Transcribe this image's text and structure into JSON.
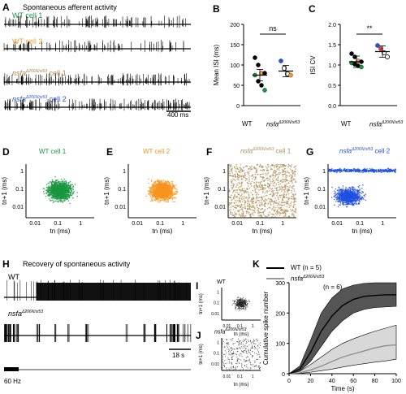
{
  "panels": {
    "A": "A",
    "B": "B",
    "C": "C",
    "D": "D",
    "E": "E",
    "F": "F",
    "G": "G",
    "H": "H",
    "I": "I",
    "J": "J",
    "K": "K"
  },
  "A": {
    "title": "Spontaneous afferent activity",
    "cells": [
      {
        "label_pre": "WT cell 1",
        "label_sup": "",
        "label_post": "",
        "color": "#1a9641"
      },
      {
        "label_pre": "WT cell 2",
        "label_sup": "",
        "label_post": "",
        "color": "#f39c2a"
      },
      {
        "label_pre": "nsfa",
        "label_sup": "Δ206N/st53",
        "label_post": " cell 1",
        "color": "#a8844a"
      },
      {
        "label_pre": "nsfa",
        "label_sup": "Δ206N/st53",
        "label_post": " cell 2",
        "color": "#2255dd"
      }
    ],
    "scale_bar": "400 ms"
  },
  "B": {
    "sig": "ns",
    "ylabel": "Mean ISI (ms)",
    "yticks": [
      "0",
      "50",
      "100",
      "150",
      "200"
    ],
    "xcat1": "WT",
    "xcat2_pre": "nsfa",
    "xcat2_sup": "Δ206N/st53"
  },
  "C": {
    "sig": "**",
    "ylabel": "ISI CV",
    "yticks": [
      "0.0",
      "0.5",
      "1.0",
      "1.5",
      "2.0"
    ],
    "xcat1": "WT",
    "xcat2_pre": "nsfa",
    "xcat2_sup": "Δ206N/st53"
  },
  "scatters": [
    {
      "title_pre": "WT cell 1",
      "title_sup": "",
      "title_post": "",
      "color": "#1a9641"
    },
    {
      "title_pre": "WT cell 2",
      "title_sup": "",
      "title_post": "",
      "color": "#f7941d"
    },
    {
      "title_pre": "nsfa",
      "title_sup": "Δ206N/st53",
      "title_post": " cell 1",
      "color": "#b08d57"
    },
    {
      "title_pre": "nsfa",
      "title_sup": "Δ206N/st53",
      "title_post": " cell 2",
      "color": "#1f4fe0"
    }
  ],
  "scatter_axes": {
    "yticks": [
      "1",
      "0.1",
      "0.01"
    ],
    "xticks": [
      "0.01",
      "0.1",
      "1"
    ],
    "ylabel": "t",
    "ylabel_sub": "n+1",
    "ylabel_unit": " (ms)",
    "xlabel": "t",
    "xlabel_sub": "n",
    "xlabel_unit": " (ms)"
  },
  "H": {
    "title": "Recovery of spontaneous activity",
    "row1": "WT",
    "row2_pre": "nsfa",
    "row2_sup": "Δ206N/st53",
    "scale_bar": "18 s",
    "stim": "60 Hz"
  },
  "I": {
    "title": "WT"
  },
  "J": {
    "title_pre": "nsfa",
    "title_sup": "Δ206N/st53"
  },
  "K": {
    "legend1": "WT (n = 5)",
    "legend2_pre": "nsfa",
    "legend2_sup": "Δ206N/st53",
    "legend2_post": " (n = 6)",
    "ylabel": "Cumulative spike number",
    "xlabel": "Time (s)",
    "yticks": [
      "0",
      "100",
      "200",
      "300"
    ],
    "xticks": [
      "0",
      "20",
      "40",
      "60",
      "80",
      "100"
    ]
  },
  "chart_data": [
    {
      "type": "scatter",
      "title": "",
      "ylabel": "Mean ISI (ms)",
      "categories": [
        "WT",
        "nsfaΔ206N/st53"
      ],
      "ylim": [
        0,
        200
      ],
      "series": [
        {
          "name": "WT",
          "values": [
            118,
            100,
            80,
            80,
            75,
            60,
            50,
            38
          ]
        },
        {
          "name": "nsfaΔ206N/st53",
          "values": [
            110,
            92,
            78,
            75
          ]
        }
      ],
      "means": [
        75,
        85
      ]
    },
    {
      "type": "scatter",
      "title": "",
      "ylabel": "ISI CV",
      "categories": [
        "WT",
        "nsfaΔ206N/st53"
      ],
      "ylim": [
        0,
        2.0
      ],
      "series": [
        {
          "name": "WT",
          "values": [
            1.28,
            1.2,
            1.1,
            1.08,
            1.05,
            1.02,
            0.98,
            0.95
          ]
        },
        {
          "name": "nsfaΔ206N/st53",
          "values": [
            1.48,
            1.4,
            1.3,
            1.2
          ]
        }
      ],
      "means": [
        1.08,
        1.33
      ]
    },
    {
      "type": "line",
      "title": "",
      "xlabel": "Time (s)",
      "ylabel": "Cumulative spike number",
      "xlim": [
        0,
        100
      ],
      "ylim": [
        0,
        300
      ],
      "x": [
        0,
        10,
        20,
        30,
        40,
        50,
        60,
        70,
        80,
        90,
        100
      ],
      "series": [
        {
          "name": "WT (n = 5)",
          "values": [
            0,
            15,
            70,
            140,
            190,
            225,
            245,
            255,
            258,
            260,
            260
          ],
          "upper": [
            0,
            25,
            110,
            200,
            250,
            280,
            292,
            298,
            300,
            300,
            300
          ],
          "lower": [
            0,
            8,
            40,
            90,
            140,
            175,
            200,
            212,
            218,
            220,
            222
          ]
        },
        {
          "name": "nsfaΔ206N/st53 (n = 6)",
          "values": [
            0,
            3,
            12,
            25,
            40,
            55,
            65,
            75,
            85,
            92,
            95
          ],
          "upper": [
            0,
            8,
            30,
            55,
            80,
            100,
            115,
            128,
            140,
            150,
            160
          ],
          "lower": [
            0,
            1,
            5,
            10,
            15,
            22,
            28,
            33,
            38,
            42,
            48
          ]
        }
      ]
    }
  ]
}
